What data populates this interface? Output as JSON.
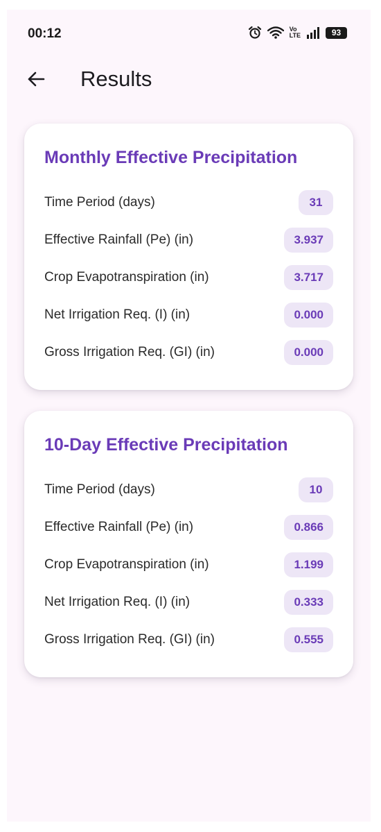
{
  "status_bar": {
    "time": "00:12",
    "volte_top": "Vo",
    "volte_bottom": "LTE",
    "battery": "93",
    "icons": [
      "alarm-icon",
      "wifi-icon",
      "volte-icon",
      "signal-icon",
      "battery-icon"
    ]
  },
  "app_bar": {
    "back_icon": "arrow-back-icon",
    "title": "Results"
  },
  "colors": {
    "accent": "#6a3bb7",
    "chip_background": "#ede6f6",
    "screen_background": "#fdf6fc",
    "card_background": "#ffffff"
  },
  "cards": [
    {
      "title": "Monthly Effective Precipitation",
      "rows": [
        {
          "label": "Time Period (days)",
          "value": "31"
        },
        {
          "label": "Effective Rainfall (Pe) (in)",
          "value": "3.937"
        },
        {
          "label": "Crop Evapotranspiration (in)",
          "value": "3.717"
        },
        {
          "label": "Net Irrigation Req. (I) (in)",
          "value": "0.000"
        },
        {
          "label": "Gross Irrigation Req. (GI) (in)",
          "value": "0.000"
        }
      ]
    },
    {
      "title": "10-Day Effective Precipitation",
      "rows": [
        {
          "label": "Time Period (days)",
          "value": "10"
        },
        {
          "label": "Effective Rainfall (Pe) (in)",
          "value": "0.866"
        },
        {
          "label": "Crop Evapotranspiration (in)",
          "value": "1.199"
        },
        {
          "label": "Net Irrigation Req. (I) (in)",
          "value": "0.333"
        },
        {
          "label": "Gross Irrigation Req. (GI) (in)",
          "value": "0.555"
        }
      ]
    }
  ]
}
